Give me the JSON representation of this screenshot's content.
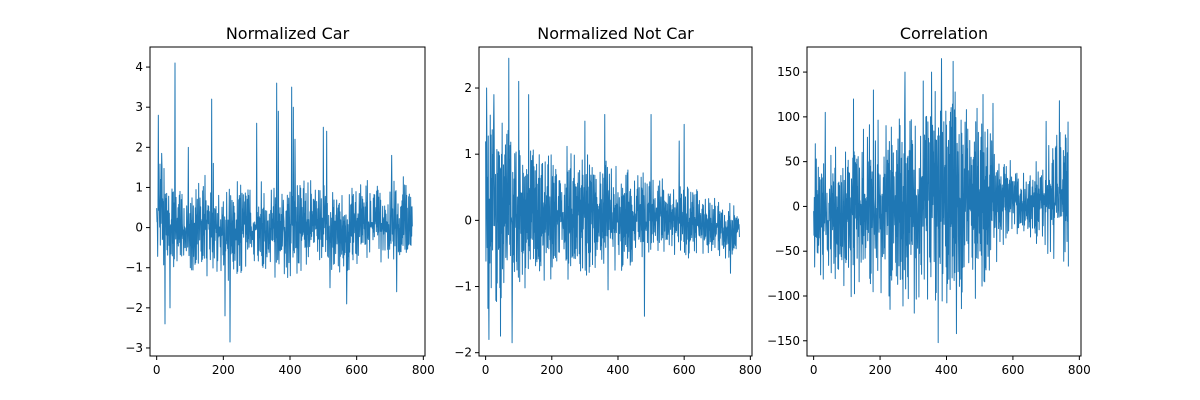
{
  "figure": {
    "background": "#ffffff"
  },
  "chart_data": [
    {
      "type": "line",
      "title": "Normalized Car",
      "xlabel": "",
      "ylabel": "",
      "xlim": [
        -20,
        805
      ],
      "ylim": [
        -3.2,
        4.5
      ],
      "xticks": [
        0,
        200,
        400,
        600,
        800
      ],
      "yticks": [
        -3,
        -2,
        -1,
        0,
        1,
        2,
        3,
        4
      ],
      "grid": false,
      "legend": "none",
      "series": [
        {
          "color": "#1f77b4",
          "n_points": 768,
          "envelope_x": [
            0,
            50,
            100,
            150,
            200,
            250,
            300,
            350,
            400,
            450,
            500,
            550,
            600,
            650,
            700,
            750,
            767
          ],
          "envelope_upper": [
            1.8,
            1.3,
            1.1,
            1.2,
            1.1,
            1.3,
            1.2,
            1.3,
            1.3,
            1.3,
            1.2,
            1.0,
            1.2,
            1.3,
            1.2,
            1.4,
            0.8
          ],
          "envelope_lower": [
            -1.0,
            -1.3,
            -1.3,
            -1.4,
            -1.5,
            -1.4,
            -1.2,
            -1.3,
            -1.3,
            -1.2,
            -1.1,
            -1.2,
            -1.1,
            -1.1,
            -1.1,
            -0.9,
            -0.6
          ],
          "spikes_x": [
            5,
            15,
            25,
            40,
            55,
            95,
            145,
            165,
            170,
            205,
            220,
            300,
            360,
            365,
            405,
            410,
            415,
            500,
            510,
            520,
            570,
            705,
            720
          ],
          "spikes_y": [
            2.8,
            1.85,
            -2.4,
            -2.0,
            4.1,
            2.0,
            1.3,
            3.2,
            1.6,
            -2.2,
            -2.85,
            2.6,
            3.6,
            2.9,
            3.5,
            3.0,
            2.2,
            2.5,
            2.4,
            -1.5,
            -1.9,
            1.8,
            -1.6
          ]
        }
      ]
    },
    {
      "type": "line",
      "title": "Normalized Not Car",
      "xlabel": "",
      "ylabel": "",
      "xlim": [
        -20,
        805
      ],
      "ylim": [
        -2.05,
        2.62
      ],
      "xticks": [
        0,
        200,
        400,
        600,
        800
      ],
      "yticks": [
        -2,
        -1,
        0,
        1,
        2
      ],
      "grid": false,
      "legend": "none",
      "series": [
        {
          "color": "#1f77b4",
          "n_points": 768,
          "envelope_x": [
            0,
            50,
            100,
            150,
            200,
            250,
            300,
            350,
            400,
            450,
            500,
            550,
            600,
            650,
            700,
            750,
            767
          ],
          "envelope_upper": [
            1.7,
            1.7,
            1.4,
            1.2,
            1.2,
            1.2,
            1.1,
            1.1,
            0.9,
            0.9,
            0.8,
            0.6,
            0.6,
            0.5,
            0.4,
            0.3,
            0.15
          ],
          "envelope_lower": [
            -1.6,
            -1.5,
            -1.2,
            -1.0,
            -1.1,
            -1.0,
            -0.9,
            -0.9,
            -0.8,
            -0.8,
            -0.6,
            -0.5,
            -0.6,
            -0.6,
            -0.6,
            -0.7,
            -0.3
          ],
          "spikes_x": [
            3,
            10,
            25,
            45,
            70,
            80,
            100,
            130,
            300,
            360,
            370,
            480,
            500,
            585,
            600,
            740
          ],
          "spikes_y": [
            2.0,
            -1.8,
            1.9,
            -1.75,
            2.45,
            -1.85,
            2.1,
            1.9,
            1.5,
            1.6,
            -1.05,
            -1.45,
            1.6,
            1.2,
            1.45,
            -0.8
          ]
        }
      ]
    },
    {
      "type": "line",
      "title": "Correlation",
      "xlabel": "",
      "ylabel": "",
      "xlim": [
        -20,
        805
      ],
      "ylim": [
        -167,
        178
      ],
      "xticks": [
        0,
        200,
        400,
        600,
        800
      ],
      "yticks": [
        -150,
        -100,
        -50,
        0,
        50,
        100,
        150
      ],
      "grid": false,
      "legend": "none",
      "series": [
        {
          "color": "#1f77b4",
          "n_points": 768,
          "envelope_x": [
            0,
            50,
            100,
            150,
            200,
            250,
            300,
            350,
            400,
            450,
            500,
            550,
            600,
            650,
            700,
            750,
            767
          ],
          "envelope_upper": [
            60,
            70,
            90,
            100,
            110,
            110,
            125,
            130,
            140,
            135,
            120,
            80,
            50,
            40,
            70,
            110,
            100
          ],
          "envelope_lower": [
            -95,
            -90,
            -105,
            -100,
            -110,
            -110,
            -120,
            -125,
            -135,
            -125,
            -110,
            -70,
            -40,
            -40,
            -60,
            -80,
            -85
          ],
          "spikes_x": [
            5,
            35,
            120,
            180,
            230,
            275,
            330,
            355,
            375,
            385,
            420,
            430,
            510,
            540,
            670,
            700,
            740
          ],
          "spikes_y": [
            70,
            105,
            120,
            130,
            -115,
            150,
            140,
            150,
            -152,
            165,
            162,
            -142,
            125,
            115,
            50,
            95,
            118
          ]
        }
      ]
    }
  ]
}
